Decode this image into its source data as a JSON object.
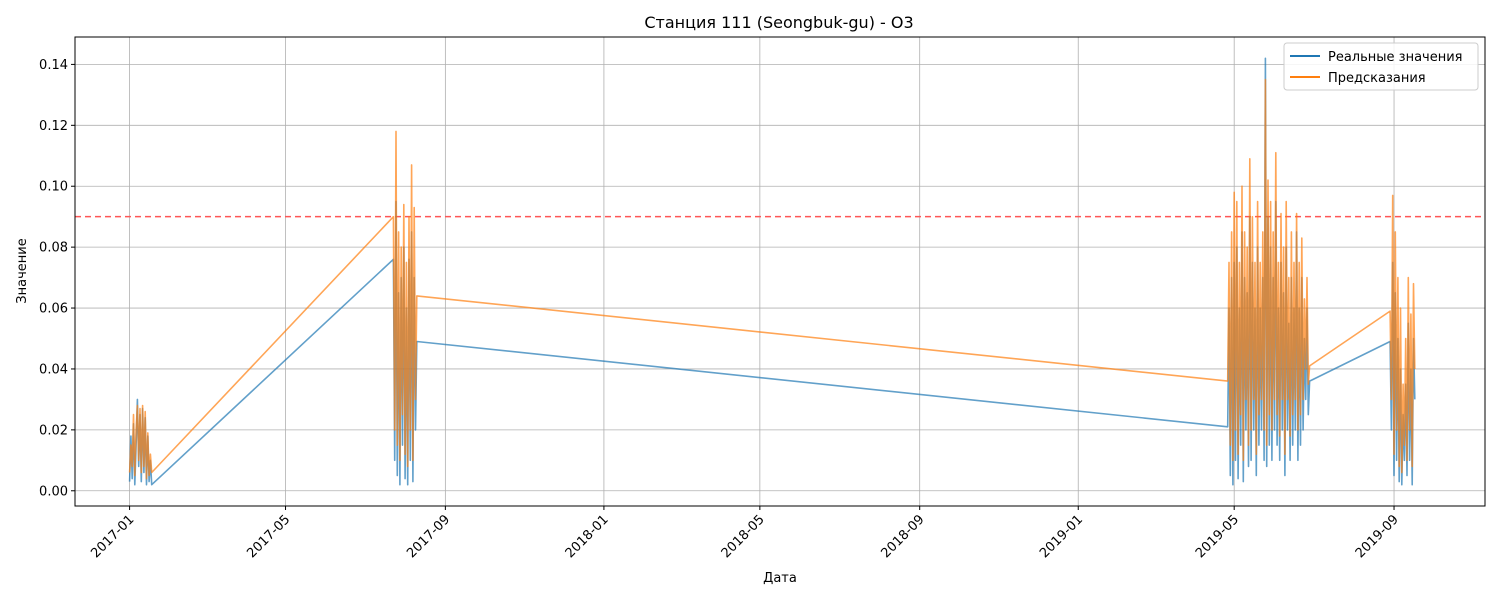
{
  "chart_data": {
    "type": "line",
    "title": "Станция 111 (Seongbuk-gu) - O3",
    "xlabel": "Дата",
    "ylabel": "Значение",
    "x_ticks": [
      "2017-01",
      "2017-05",
      "2017-09",
      "2018-01",
      "2018-05",
      "2018-09",
      "2019-01",
      "2019-05",
      "2019-09"
    ],
    "y_ticks": [
      "0.00",
      "0.02",
      "0.04",
      "0.06",
      "0.08",
      "0.10",
      "0.12",
      "0.14"
    ],
    "xlim": [
      "2016-11-20",
      "2019-11-10"
    ],
    "ylim": [
      -0.005,
      0.149
    ],
    "grid": true,
    "legend_position": "top-right",
    "reference_line": {
      "y": 0.09,
      "style": "dashed",
      "color": "#ff5555"
    },
    "colors": {
      "actual": "#1f77b4",
      "predicted": "#ff7f0e"
    },
    "series": [
      {
        "name": "Реальные значения",
        "points": [
          [
            "2017-01-01",
            0.003
          ],
          [
            "2017-01-02",
            0.018
          ],
          [
            "2017-01-03",
            0.004
          ],
          [
            "2017-01-04",
            0.022
          ],
          [
            "2017-01-05",
            0.002
          ],
          [
            "2017-01-06",
            0.015
          ],
          [
            "2017-01-07",
            0.03
          ],
          [
            "2017-01-08",
            0.008
          ],
          [
            "2017-01-09",
            0.025
          ],
          [
            "2017-01-10",
            0.003
          ],
          [
            "2017-01-11",
            0.027
          ],
          [
            "2017-01-12",
            0.006
          ],
          [
            "2017-01-13",
            0.024
          ],
          [
            "2017-01-14",
            0.002
          ],
          [
            "2017-01-15",
            0.018
          ],
          [
            "2017-01-16",
            0.003
          ],
          [
            "2017-01-17",
            0.01
          ],
          [
            "2017-01-18",
            0.002
          ],
          [
            "2017-07-23",
            0.076
          ],
          [
            "2017-07-24",
            0.01
          ],
          [
            "2017-07-25",
            0.095
          ],
          [
            "2017-07-26",
            0.005
          ],
          [
            "2017-07-27",
            0.065
          ],
          [
            "2017-07-28",
            0.002
          ],
          [
            "2017-07-29",
            0.07
          ],
          [
            "2017-07-30",
            0.015
          ],
          [
            "2017-07-31",
            0.08
          ],
          [
            "2017-08-01",
            0.004
          ],
          [
            "2017-08-02",
            0.06
          ],
          [
            "2017-08-03",
            0.002
          ],
          [
            "2017-08-04",
            0.076
          ],
          [
            "2017-08-05",
            0.01
          ],
          [
            "2017-08-06",
            0.085
          ],
          [
            "2017-08-07",
            0.003
          ],
          [
            "2017-08-08",
            0.07
          ],
          [
            "2017-08-09",
            0.02
          ],
          [
            "2017-08-10",
            0.049
          ],
          [
            "2019-04-26",
            0.021
          ],
          [
            "2019-04-27",
            0.06
          ],
          [
            "2019-04-28",
            0.005
          ],
          [
            "2019-04-29",
            0.07
          ],
          [
            "2019-04-30",
            0.002
          ],
          [
            "2019-05-01",
            0.075
          ],
          [
            "2019-05-02",
            0.01
          ],
          [
            "2019-05-03",
            0.08
          ],
          [
            "2019-05-04",
            0.004
          ],
          [
            "2019-05-05",
            0.06
          ],
          [
            "2019-05-06",
            0.015
          ],
          [
            "2019-05-07",
            0.085
          ],
          [
            "2019-05-08",
            0.003
          ],
          [
            "2019-05-09",
            0.07
          ],
          [
            "2019-05-10",
            0.02
          ],
          [
            "2019-05-11",
            0.065
          ],
          [
            "2019-05-12",
            0.008
          ],
          [
            "2019-05-13",
            0.09
          ],
          [
            "2019-05-14",
            0.01
          ],
          [
            "2019-05-15",
            0.075
          ],
          [
            "2019-05-16",
            0.02
          ],
          [
            "2019-05-17",
            0.06
          ],
          [
            "2019-05-18",
            0.005
          ],
          [
            "2019-05-19",
            0.08
          ],
          [
            "2019-05-20",
            0.015
          ],
          [
            "2019-05-21",
            0.06
          ],
          [
            "2019-05-22",
            0.02
          ],
          [
            "2019-05-23",
            0.07
          ],
          [
            "2019-05-24",
            0.01
          ],
          [
            "2019-05-25",
            0.142
          ],
          [
            "2019-05-26",
            0.008
          ],
          [
            "2019-05-27",
            0.09
          ],
          [
            "2019-05-28",
            0.015
          ],
          [
            "2019-05-29",
            0.08
          ],
          [
            "2019-05-30",
            0.01
          ],
          [
            "2019-05-31",
            0.07
          ],
          [
            "2019-06-01",
            0.02
          ],
          [
            "2019-06-02",
            0.095
          ],
          [
            "2019-06-03",
            0.015
          ],
          [
            "2019-06-04",
            0.06
          ],
          [
            "2019-06-05",
            0.01
          ],
          [
            "2019-06-06",
            0.075
          ],
          [
            "2019-06-07",
            0.02
          ],
          [
            "2019-06-08",
            0.065
          ],
          [
            "2019-06-09",
            0.005
          ],
          [
            "2019-06-10",
            0.08
          ],
          [
            "2019-06-11",
            0.02
          ],
          [
            "2019-06-12",
            0.055
          ],
          [
            "2019-06-13",
            0.01
          ],
          [
            "2019-06-14",
            0.07
          ],
          [
            "2019-06-15",
            0.015
          ],
          [
            "2019-06-16",
            0.06
          ],
          [
            "2019-06-17",
            0.02
          ],
          [
            "2019-06-18",
            0.085
          ],
          [
            "2019-06-19",
            0.01
          ],
          [
            "2019-06-20",
            0.06
          ],
          [
            "2019-06-21",
            0.015
          ],
          [
            "2019-06-22",
            0.07
          ],
          [
            "2019-06-23",
            0.02
          ],
          [
            "2019-06-24",
            0.05
          ],
          [
            "2019-06-25",
            0.03
          ],
          [
            "2019-06-26",
            0.06
          ],
          [
            "2019-06-27",
            0.025
          ],
          [
            "2019-06-28",
            0.036
          ],
          [
            "2019-08-29",
            0.049
          ],
          [
            "2019-08-30",
            0.02
          ],
          [
            "2019-08-31",
            0.075
          ],
          [
            "2019-09-01",
            0.005
          ],
          [
            "2019-09-02",
            0.065
          ],
          [
            "2019-09-03",
            0.01
          ],
          [
            "2019-09-04",
            0.05
          ],
          [
            "2019-09-05",
            0.003
          ],
          [
            "2019-09-06",
            0.04
          ],
          [
            "2019-09-07",
            0.002
          ],
          [
            "2019-09-08",
            0.025
          ],
          [
            "2019-09-09",
            0.01
          ],
          [
            "2019-09-10",
            0.035
          ],
          [
            "2019-09-11",
            0.005
          ],
          [
            "2019-09-12",
            0.055
          ],
          [
            "2019-09-13",
            0.01
          ],
          [
            "2019-09-14",
            0.04
          ],
          [
            "2019-09-15",
            0.002
          ],
          [
            "2019-09-16",
            0.05
          ],
          [
            "2019-09-17",
            0.03
          ]
        ]
      },
      {
        "name": "Предсказания",
        "points": [
          [
            "2017-01-01",
            0.006
          ],
          [
            "2017-01-02",
            0.015
          ],
          [
            "2017-01-03",
            0.008
          ],
          [
            "2017-01-04",
            0.025
          ],
          [
            "2017-01-05",
            0.005
          ],
          [
            "2017-01-06",
            0.02
          ],
          [
            "2017-01-07",
            0.028
          ],
          [
            "2017-01-08",
            0.01
          ],
          [
            "2017-01-09",
            0.027
          ],
          [
            "2017-01-10",
            0.006
          ],
          [
            "2017-01-11",
            0.028
          ],
          [
            "2017-01-12",
            0.008
          ],
          [
            "2017-01-13",
            0.026
          ],
          [
            "2017-01-14",
            0.004
          ],
          [
            "2017-01-15",
            0.019
          ],
          [
            "2017-01-16",
            0.005
          ],
          [
            "2017-01-17",
            0.012
          ],
          [
            "2017-01-18",
            0.006
          ],
          [
            "2017-07-23",
            0.09
          ],
          [
            "2017-07-24",
            0.02
          ],
          [
            "2017-07-25",
            0.118
          ],
          [
            "2017-07-26",
            0.015
          ],
          [
            "2017-07-27",
            0.085
          ],
          [
            "2017-07-28",
            0.01
          ],
          [
            "2017-07-29",
            0.08
          ],
          [
            "2017-07-30",
            0.025
          ],
          [
            "2017-07-31",
            0.094
          ],
          [
            "2017-08-01",
            0.012
          ],
          [
            "2017-08-02",
            0.075
          ],
          [
            "2017-08-03",
            0.008
          ],
          [
            "2017-08-04",
            0.09
          ],
          [
            "2017-08-05",
            0.02
          ],
          [
            "2017-08-06",
            0.107
          ],
          [
            "2017-08-07",
            0.01
          ],
          [
            "2017-08-08",
            0.093
          ],
          [
            "2017-08-09",
            0.03
          ],
          [
            "2017-08-10",
            0.064
          ],
          [
            "2019-04-26",
            0.036
          ],
          [
            "2019-04-27",
            0.075
          ],
          [
            "2019-04-28",
            0.015
          ],
          [
            "2019-04-29",
            0.085
          ],
          [
            "2019-04-30",
            0.01
          ],
          [
            "2019-05-01",
            0.098
          ],
          [
            "2019-05-02",
            0.02
          ],
          [
            "2019-05-03",
            0.095
          ],
          [
            "2019-05-04",
            0.012
          ],
          [
            "2019-05-05",
            0.075
          ],
          [
            "2019-05-06",
            0.025
          ],
          [
            "2019-05-07",
            0.1
          ],
          [
            "2019-05-08",
            0.01
          ],
          [
            "2019-05-09",
            0.085
          ],
          [
            "2019-05-10",
            0.03
          ],
          [
            "2019-05-11",
            0.08
          ],
          [
            "2019-05-12",
            0.015
          ],
          [
            "2019-05-13",
            0.109
          ],
          [
            "2019-05-14",
            0.02
          ],
          [
            "2019-05-15",
            0.09
          ],
          [
            "2019-05-16",
            0.03
          ],
          [
            "2019-05-17",
            0.075
          ],
          [
            "2019-05-18",
            0.012
          ],
          [
            "2019-05-19",
            0.095
          ],
          [
            "2019-05-20",
            0.025
          ],
          [
            "2019-05-21",
            0.075
          ],
          [
            "2019-05-22",
            0.03
          ],
          [
            "2019-05-23",
            0.085
          ],
          [
            "2019-05-24",
            0.02
          ],
          [
            "2019-05-25",
            0.135
          ],
          [
            "2019-05-26",
            0.015
          ],
          [
            "2019-05-27",
            0.102
          ],
          [
            "2019-05-28",
            0.025
          ],
          [
            "2019-05-29",
            0.095
          ],
          [
            "2019-05-30",
            0.02
          ],
          [
            "2019-05-31",
            0.085
          ],
          [
            "2019-06-01",
            0.03
          ],
          [
            "2019-06-02",
            0.111
          ],
          [
            "2019-06-03",
            0.025
          ],
          [
            "2019-06-04",
            0.075
          ],
          [
            "2019-06-05",
            0.018
          ],
          [
            "2019-06-06",
            0.091
          ],
          [
            "2019-06-07",
            0.03
          ],
          [
            "2019-06-08",
            0.08
          ],
          [
            "2019-06-09",
            0.012
          ],
          [
            "2019-06-10",
            0.095
          ],
          [
            "2019-06-11",
            0.03
          ],
          [
            "2019-06-12",
            0.07
          ],
          [
            "2019-06-13",
            0.018
          ],
          [
            "2019-06-14",
            0.085
          ],
          [
            "2019-06-15",
            0.025
          ],
          [
            "2019-06-16",
            0.075
          ],
          [
            "2019-06-17",
            0.03
          ],
          [
            "2019-06-18",
            0.091
          ],
          [
            "2019-06-19",
            0.02
          ],
          [
            "2019-06-20",
            0.075
          ],
          [
            "2019-06-21",
            0.025
          ],
          [
            "2019-06-22",
            0.083
          ],
          [
            "2019-06-23",
            0.03
          ],
          [
            "2019-06-24",
            0.063
          ],
          [
            "2019-06-25",
            0.04
          ],
          [
            "2019-06-26",
            0.07
          ],
          [
            "2019-06-27",
            0.035
          ],
          [
            "2019-06-28",
            0.041
          ],
          [
            "2019-08-29",
            0.059
          ],
          [
            "2019-08-30",
            0.03
          ],
          [
            "2019-08-31",
            0.097
          ],
          [
            "2019-09-01",
            0.012
          ],
          [
            "2019-09-02",
            0.085
          ],
          [
            "2019-09-03",
            0.02
          ],
          [
            "2019-09-04",
            0.07
          ],
          [
            "2019-09-05",
            0.008
          ],
          [
            "2019-09-06",
            0.06
          ],
          [
            "2019-09-07",
            0.006
          ],
          [
            "2019-09-08",
            0.035
          ],
          [
            "2019-09-09",
            0.015
          ],
          [
            "2019-09-10",
            0.05
          ],
          [
            "2019-09-11",
            0.01
          ],
          [
            "2019-09-12",
            0.07
          ],
          [
            "2019-09-13",
            0.02
          ],
          [
            "2019-09-14",
            0.058
          ],
          [
            "2019-09-15",
            0.008
          ],
          [
            "2019-09-16",
            0.068
          ],
          [
            "2019-09-17",
            0.04
          ]
        ]
      }
    ]
  }
}
